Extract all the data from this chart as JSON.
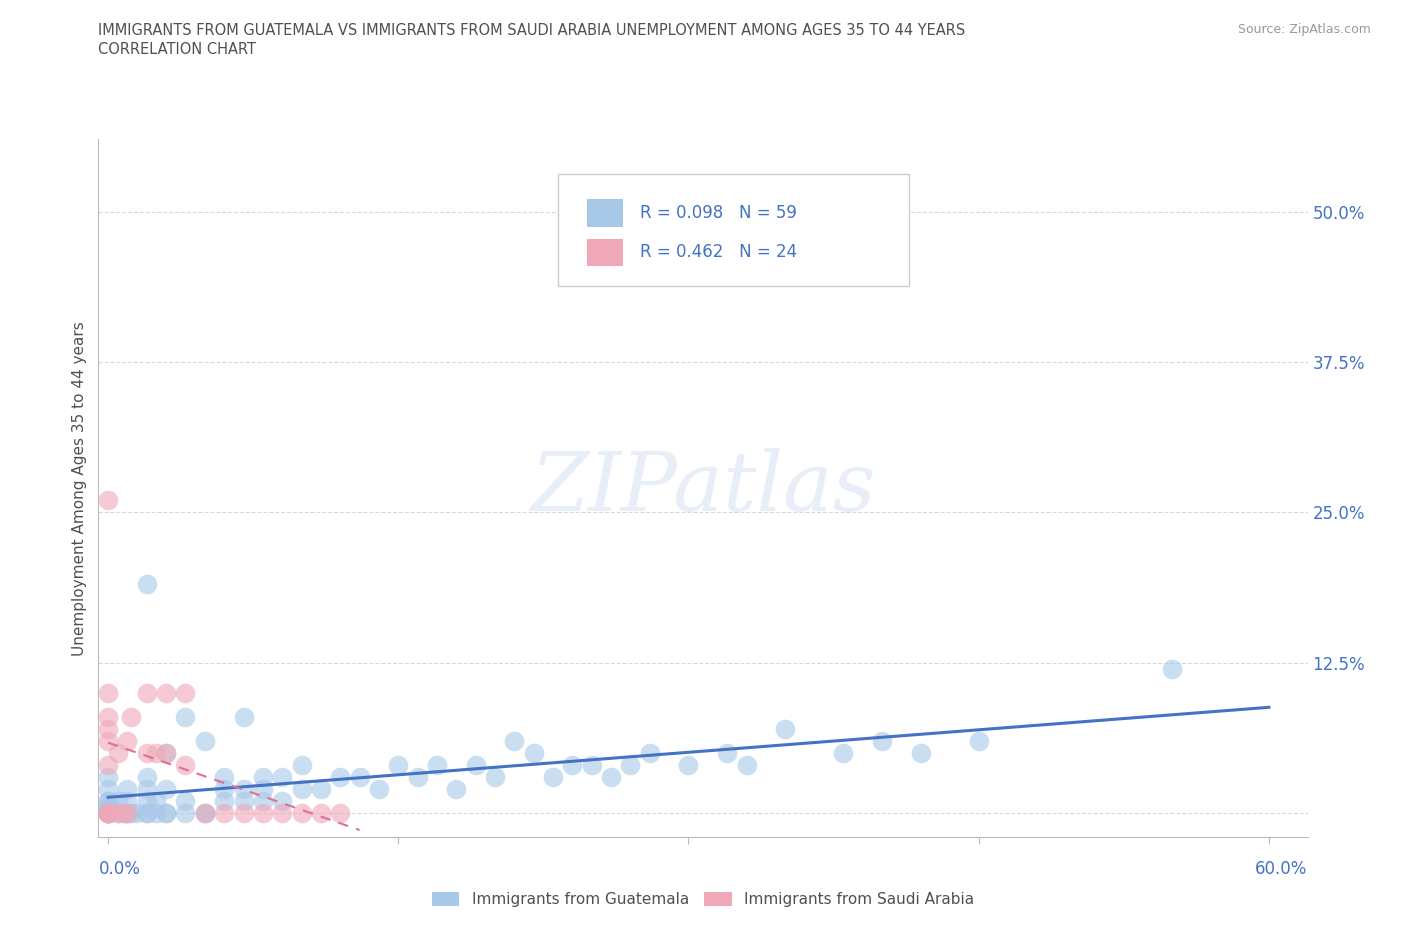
{
  "title_line1": "IMMIGRANTS FROM GUATEMALA VS IMMIGRANTS FROM SAUDI ARABIA UNEMPLOYMENT AMONG AGES 35 TO 44 YEARS",
  "title_line2": "CORRELATION CHART",
  "source_text": "Source: ZipAtlas.com",
  "ylabel": "Unemployment Among Ages 35 to 44 years",
  "xlim": [
    -0.005,
    0.62
  ],
  "ylim": [
    -0.02,
    0.56
  ],
  "yticks": [
    0.0,
    0.125,
    0.25,
    0.375,
    0.5
  ],
  "ytick_labels": [
    "",
    "12.5%",
    "25.0%",
    "37.5%",
    "50.0%"
  ],
  "xtick_labels_bottom": [
    "0.0%",
    "60.0%"
  ],
  "xtick_positions_bottom": [
    0.0,
    0.6
  ],
  "grid_color": "#d8d8d8",
  "background_color": "#ffffff",
  "watermark_text": "ZIPatlas",
  "color_blue": "#a8c8e8",
  "color_pink": "#f0a8b8",
  "line_blue": "#4472c4",
  "line_pink": "#e07090",
  "title_color": "#505050",
  "tick_color": "#4472c4",
  "legend_label1": "Immigrants from Guatemala",
  "legend_label2": "Immigrants from Saudi Arabia",
  "guatemala_x": [
    0.0,
    0.0,
    0.0,
    0.0,
    0.0,
    0.0,
    0.0,
    0.0,
    0.0,
    0.0,
    0.0,
    0.0,
    0.005,
    0.005,
    0.008,
    0.01,
    0.01,
    0.01,
    0.01,
    0.012,
    0.015,
    0.02,
    0.02,
    0.02,
    0.02,
    0.02,
    0.02,
    0.025,
    0.025,
    0.03,
    0.03,
    0.03,
    0.03,
    0.04,
    0.04,
    0.04,
    0.05,
    0.05,
    0.05,
    0.06,
    0.06,
    0.06,
    0.07,
    0.07,
    0.07,
    0.08,
    0.08,
    0.08,
    0.09,
    0.09,
    0.1,
    0.1,
    0.11,
    0.12,
    0.13,
    0.14,
    0.15,
    0.16,
    0.17,
    0.18,
    0.19,
    0.2,
    0.21,
    0.22,
    0.23,
    0.24,
    0.25,
    0.26,
    0.27,
    0.28,
    0.3,
    0.32,
    0.33,
    0.35,
    0.38,
    0.4,
    0.42,
    0.45,
    0.55
  ],
  "guatemala_y": [
    0.0,
    0.0,
    0.0,
    0.0,
    0.0,
    0.0,
    0.005,
    0.005,
    0.01,
    0.01,
    0.02,
    0.03,
    0.0,
    0.01,
    0.0,
    0.0,
    0.0,
    0.01,
    0.02,
    0.0,
    0.0,
    0.0,
    0.0,
    0.01,
    0.02,
    0.03,
    0.19,
    0.0,
    0.01,
    0.0,
    0.0,
    0.02,
    0.05,
    0.0,
    0.01,
    0.08,
    0.0,
    0.0,
    0.06,
    0.01,
    0.02,
    0.03,
    0.01,
    0.02,
    0.08,
    0.01,
    0.02,
    0.03,
    0.01,
    0.03,
    0.02,
    0.04,
    0.02,
    0.03,
    0.03,
    0.02,
    0.04,
    0.03,
    0.04,
    0.02,
    0.04,
    0.03,
    0.06,
    0.05,
    0.03,
    0.04,
    0.04,
    0.03,
    0.04,
    0.05,
    0.04,
    0.05,
    0.04,
    0.07,
    0.05,
    0.06,
    0.05,
    0.06,
    0.12
  ],
  "saudi_x": [
    0.0,
    0.0,
    0.0,
    0.0,
    0.0,
    0.0,
    0.0,
    0.0,
    0.0,
    0.0,
    0.005,
    0.005,
    0.008,
    0.01,
    0.01,
    0.012,
    0.02,
    0.02,
    0.025,
    0.03,
    0.03,
    0.04,
    0.04,
    0.05,
    0.06,
    0.07,
    0.08,
    0.09,
    0.1,
    0.11,
    0.12
  ],
  "saudi_y": [
    0.0,
    0.0,
    0.0,
    0.0,
    0.04,
    0.06,
    0.07,
    0.08,
    0.1,
    0.26,
    0.0,
    0.05,
    0.0,
    0.0,
    0.06,
    0.08,
    0.05,
    0.1,
    0.05,
    0.05,
    0.1,
    0.04,
    0.1,
    0.0,
    0.0,
    0.0,
    0.0,
    0.0,
    0.0,
    0.0,
    0.0
  ]
}
